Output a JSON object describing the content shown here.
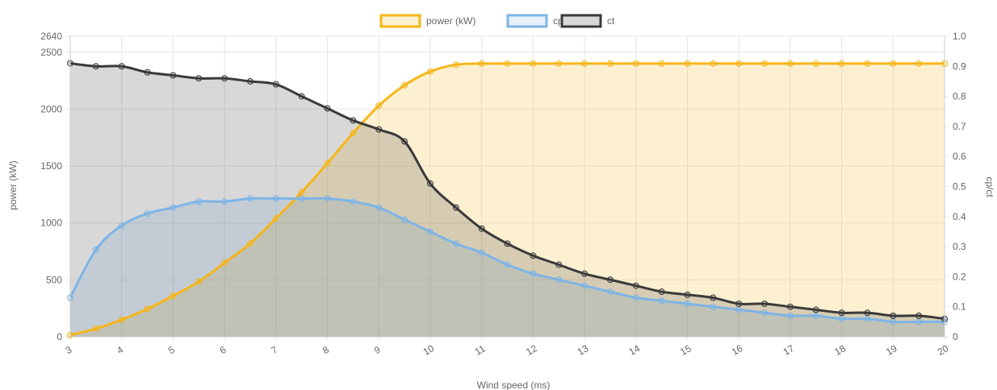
{
  "chart_data": {
    "type": "line",
    "xlabel": "Wind speed (ms)",
    "ylabel": "power (kW)",
    "y2label": "cp/ct",
    "xlim": [
      3,
      20
    ],
    "ylim": [
      0,
      2640
    ],
    "y2lim": [
      0,
      1.0
    ],
    "x_ticks": [
      "3",
      "4",
      "5",
      "6",
      "7",
      "8",
      "9",
      "10",
      "11",
      "12",
      "13",
      "14",
      "15",
      "16",
      "17",
      "18",
      "19",
      "20"
    ],
    "y_ticks": [
      "0",
      "500",
      "1000",
      "1500",
      "2000",
      "2500",
      "2640"
    ],
    "y2_ticks": [
      "0",
      "0.1",
      "0.2",
      "0.3",
      "0.4",
      "0.5",
      "0.6",
      "0.7",
      "0.8",
      "0.9",
      "1.0"
    ],
    "grid": true,
    "legend_position": "top",
    "x": [
      3,
      3.5,
      4,
      4.5,
      5,
      5.5,
      6,
      6.5,
      7,
      7.5,
      8,
      8.5,
      9,
      9.5,
      10,
      10.5,
      11,
      11.5,
      12,
      12.5,
      13,
      13.5,
      14,
      14.5,
      15,
      15.5,
      16,
      16.5,
      17,
      17.5,
      18,
      18.5,
      19,
      19.5,
      20
    ],
    "series": [
      {
        "name": "power (kW)",
        "axis": "left",
        "color": "#f5b619",
        "fill": "rgba(245,182,25,0.2)",
        "values": [
          16,
          72,
          150,
          245,
          360,
          485,
          650,
          820,
          1040,
          1270,
          1525,
          1790,
          2030,
          2210,
          2330,
          2390,
          2400,
          2400,
          2400,
          2400,
          2400,
          2400,
          2400,
          2400,
          2400,
          2400,
          2400,
          2400,
          2400,
          2400,
          2400,
          2400,
          2400,
          2400,
          2400
        ]
      },
      {
        "name": "cp",
        "axis": "right",
        "color": "#7db4e6",
        "fill": "rgba(125,180,230,0.2)",
        "values": [
          0.13,
          0.29,
          0.37,
          0.41,
          0.43,
          0.45,
          0.45,
          0.46,
          0.46,
          0.46,
          0.46,
          0.45,
          0.43,
          0.39,
          0.35,
          0.31,
          0.28,
          0.24,
          0.21,
          0.19,
          0.17,
          0.15,
          0.13,
          0.12,
          0.11,
          0.1,
          0.09,
          0.08,
          0.07,
          0.07,
          0.06,
          0.06,
          0.05,
          0.05,
          0.05
        ]
      },
      {
        "name": "ct",
        "axis": "right",
        "color": "#3a3a3a",
        "fill": "rgba(60,60,60,0.2)",
        "values": [
          0.91,
          0.9,
          0.9,
          0.88,
          0.87,
          0.86,
          0.86,
          0.85,
          0.84,
          0.8,
          0.76,
          0.72,
          0.69,
          0.65,
          0.51,
          0.43,
          0.36,
          0.31,
          0.27,
          0.24,
          0.21,
          0.19,
          0.17,
          0.15,
          0.14,
          0.13,
          0.11,
          0.11,
          0.1,
          0.09,
          0.08,
          0.08,
          0.07,
          0.07,
          0.06
        ]
      }
    ]
  }
}
